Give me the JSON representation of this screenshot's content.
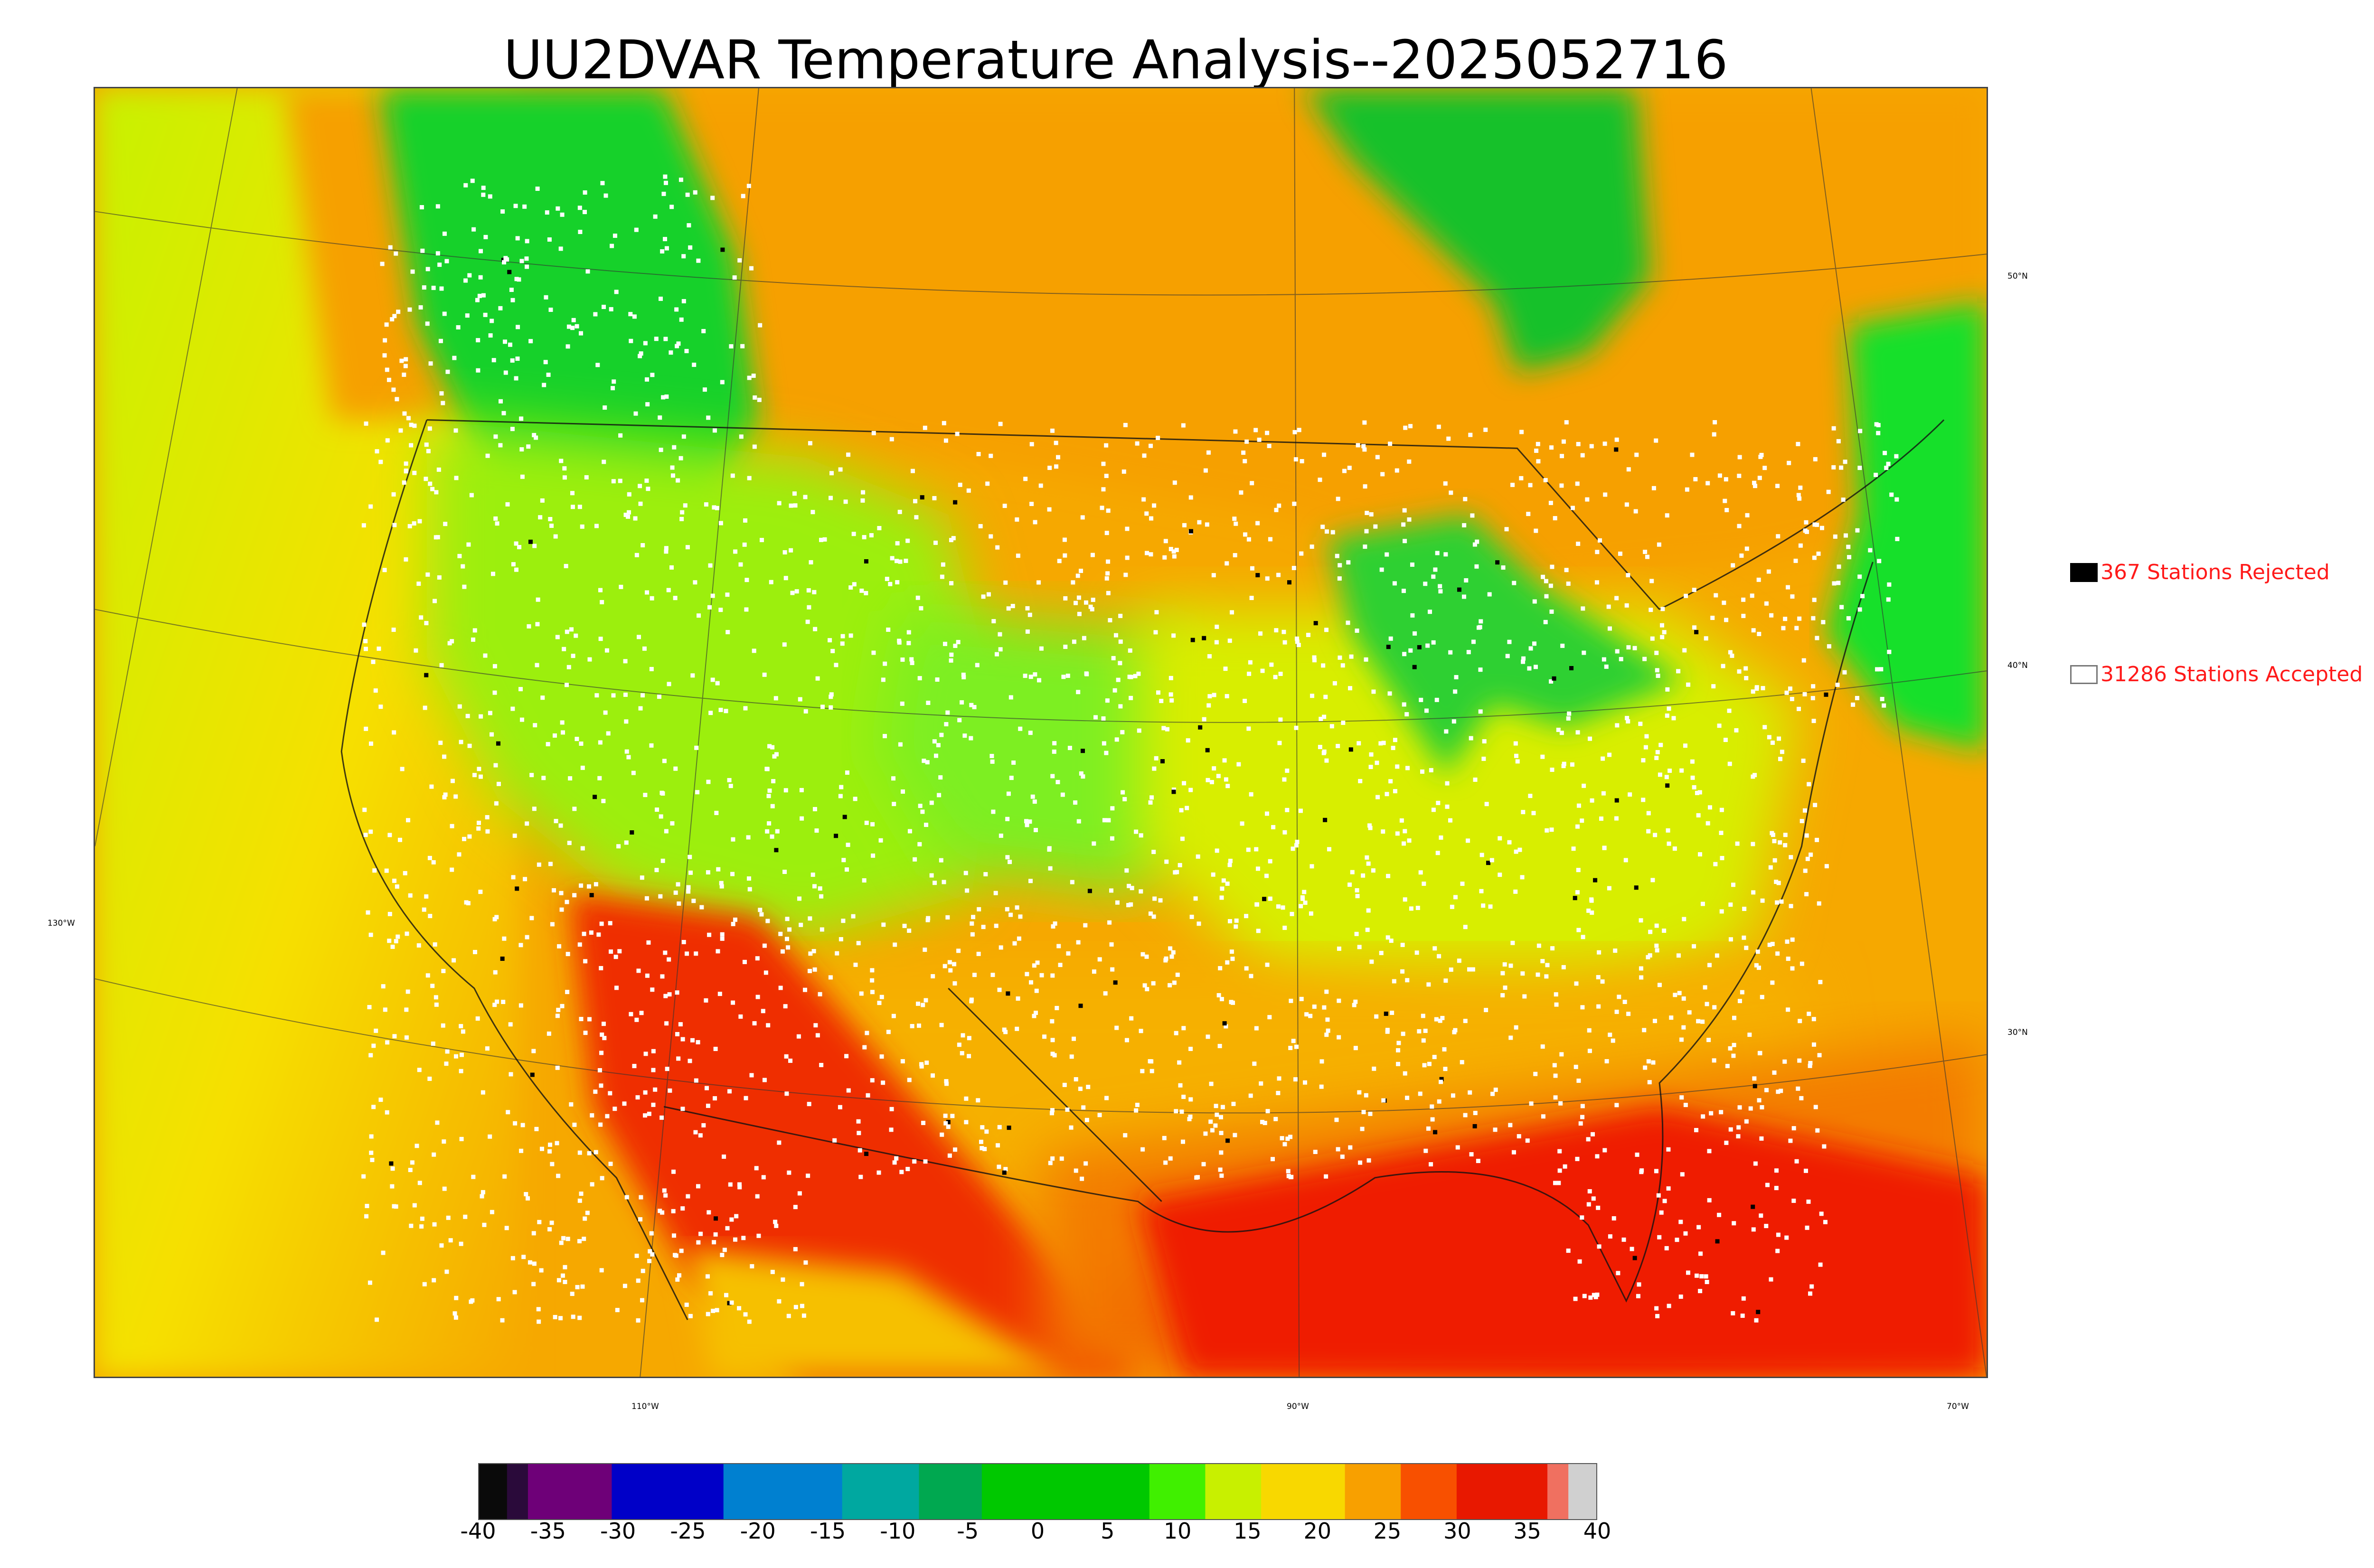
{
  "title": "UU2DVAR Temperature Analysis--2025052716",
  "map": {
    "lat_labels": [
      "50°N",
      "40°N",
      "30°N"
    ],
    "lon_labels": [
      "130°W",
      "110°W",
      "90°W",
      "70°W"
    ],
    "colors": {
      "cool_green": "#19d12a",
      "green": "#6bef28",
      "yellow_green": "#c7f200",
      "yellow": "#f6e000",
      "orange": "#f6a800",
      "dark_orange": "#f37c00",
      "red": "#ef1d00",
      "station_accepted": "#ffffff",
      "station_rejected": "#000000"
    }
  },
  "legend": {
    "rejected_label": "367 Stations Rejected",
    "accepted_label": "31286 Stations Accepted"
  },
  "colorbar": {
    "ticks": [
      "-40",
      "-35",
      "-30",
      "-25",
      "-20",
      "-15",
      "-10",
      "-5",
      "0",
      "5",
      "10",
      "15",
      "20",
      "25",
      "30",
      "35",
      "40"
    ],
    "range": [
      -40,
      40
    ],
    "stops": [
      {
        "from": -40,
        "to": -38,
        "color": "#0a0a0a"
      },
      {
        "from": -38,
        "to": -36.5,
        "color": "#2a0a3a"
      },
      {
        "from": -36.5,
        "to": -30.5,
        "color": "#6e0078"
      },
      {
        "from": -30.5,
        "to": -22.5,
        "color": "#0000c8"
      },
      {
        "from": -22.5,
        "to": -14,
        "color": "#0080d0"
      },
      {
        "from": -14,
        "to": -8.5,
        "color": "#00a8a0"
      },
      {
        "from": -8.5,
        "to": -4,
        "color": "#00a850"
      },
      {
        "from": -4,
        "to": 8,
        "color": "#00c800"
      },
      {
        "from": 8,
        "to": 12,
        "color": "#40f000"
      },
      {
        "from": 12,
        "to": 16,
        "color": "#c8f000"
      },
      {
        "from": 16,
        "to": 22,
        "color": "#f8d800"
      },
      {
        "from": 22,
        "to": 26,
        "color": "#f8a000"
      },
      {
        "from": 26,
        "to": 30,
        "color": "#f85000"
      },
      {
        "from": 30,
        "to": 36.5,
        "color": "#e81800"
      },
      {
        "from": 36.5,
        "to": 38,
        "color": "#f07060"
      },
      {
        "from": 38,
        "to": 40,
        "color": "#d0d0d0"
      }
    ]
  }
}
